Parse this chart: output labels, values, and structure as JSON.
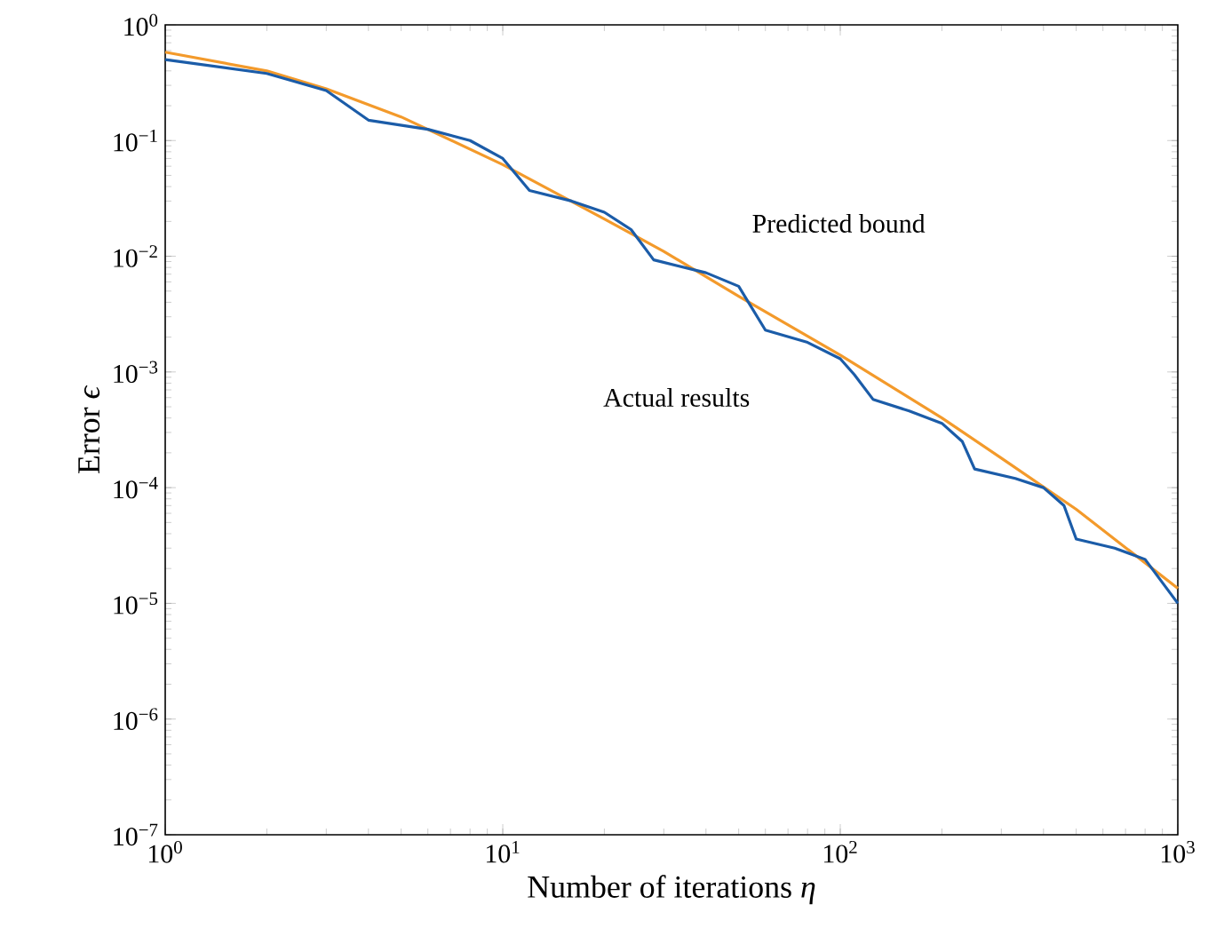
{
  "chart_data": {
    "type": "line",
    "xlabel": "Number of iterations *η*",
    "ylabel": "Error *ϵ*",
    "log": "xy",
    "grid": false,
    "legend": false,
    "xlim": [
      1,
      1000
    ],
    "ylim": [
      1e-07,
      1
    ],
    "xticks": [
      {
        "value": 1,
        "label": "10$^{0}$"
      },
      {
        "value": 10,
        "label": "10$^{1}$"
      },
      {
        "value": 100,
        "label": "10$^{2}$"
      },
      {
        "value": 1000,
        "label": "10$^{3}$"
      }
    ],
    "yticks": [
      {
        "value": 1e-07,
        "label": "10$^{−7}$"
      },
      {
        "value": 1e-06,
        "label": "10$^{−6}$"
      },
      {
        "value": 1e-05,
        "label": "10$^{−5}$"
      },
      {
        "value": 0.0001,
        "label": "10$^{−4}$"
      },
      {
        "value": 0.001,
        "label": "10$^{−3}$"
      },
      {
        "value": 0.01,
        "label": "10$^{−2}$"
      },
      {
        "value": 0.1,
        "label": "10$^{−1}$"
      },
      {
        "value": 1,
        "label": "10$^{0}$"
      }
    ],
    "series": [
      {
        "name": "Predicted bound",
        "color": "#f39a2b",
        "x": [
          1,
          2,
          3,
          5,
          10,
          20,
          30,
          50,
          100,
          200,
          300,
          500,
          1000
        ],
        "values": [
          0.58,
          0.4,
          0.28,
          0.16,
          0.062,
          0.021,
          0.011,
          0.0045,
          0.0014,
          0.0004,
          0.00018,
          6.5e-05,
          1.35e-05
        ]
      },
      {
        "name": "Actual results",
        "color": "#1b5ca8",
        "x": [
          1,
          2,
          3,
          4,
          6,
          8,
          10,
          12,
          16,
          20,
          24,
          28,
          40,
          50,
          60,
          80,
          100,
          110,
          125,
          160,
          200,
          230,
          250,
          330,
          400,
          460,
          500,
          650,
          800,
          1000
        ],
        "values": [
          0.5,
          0.38,
          0.27,
          0.15,
          0.125,
          0.1,
          0.07,
          0.037,
          0.03,
          0.024,
          0.017,
          0.0093,
          0.0072,
          0.0055,
          0.0023,
          0.0018,
          0.0013,
          0.00095,
          0.00058,
          0.00046,
          0.00036,
          0.00025,
          0.000145,
          0.00012,
          0.0001,
          7e-05,
          3.6e-05,
          3e-05,
          2.4e-05,
          1e-05
        ]
      }
    ]
  }
}
